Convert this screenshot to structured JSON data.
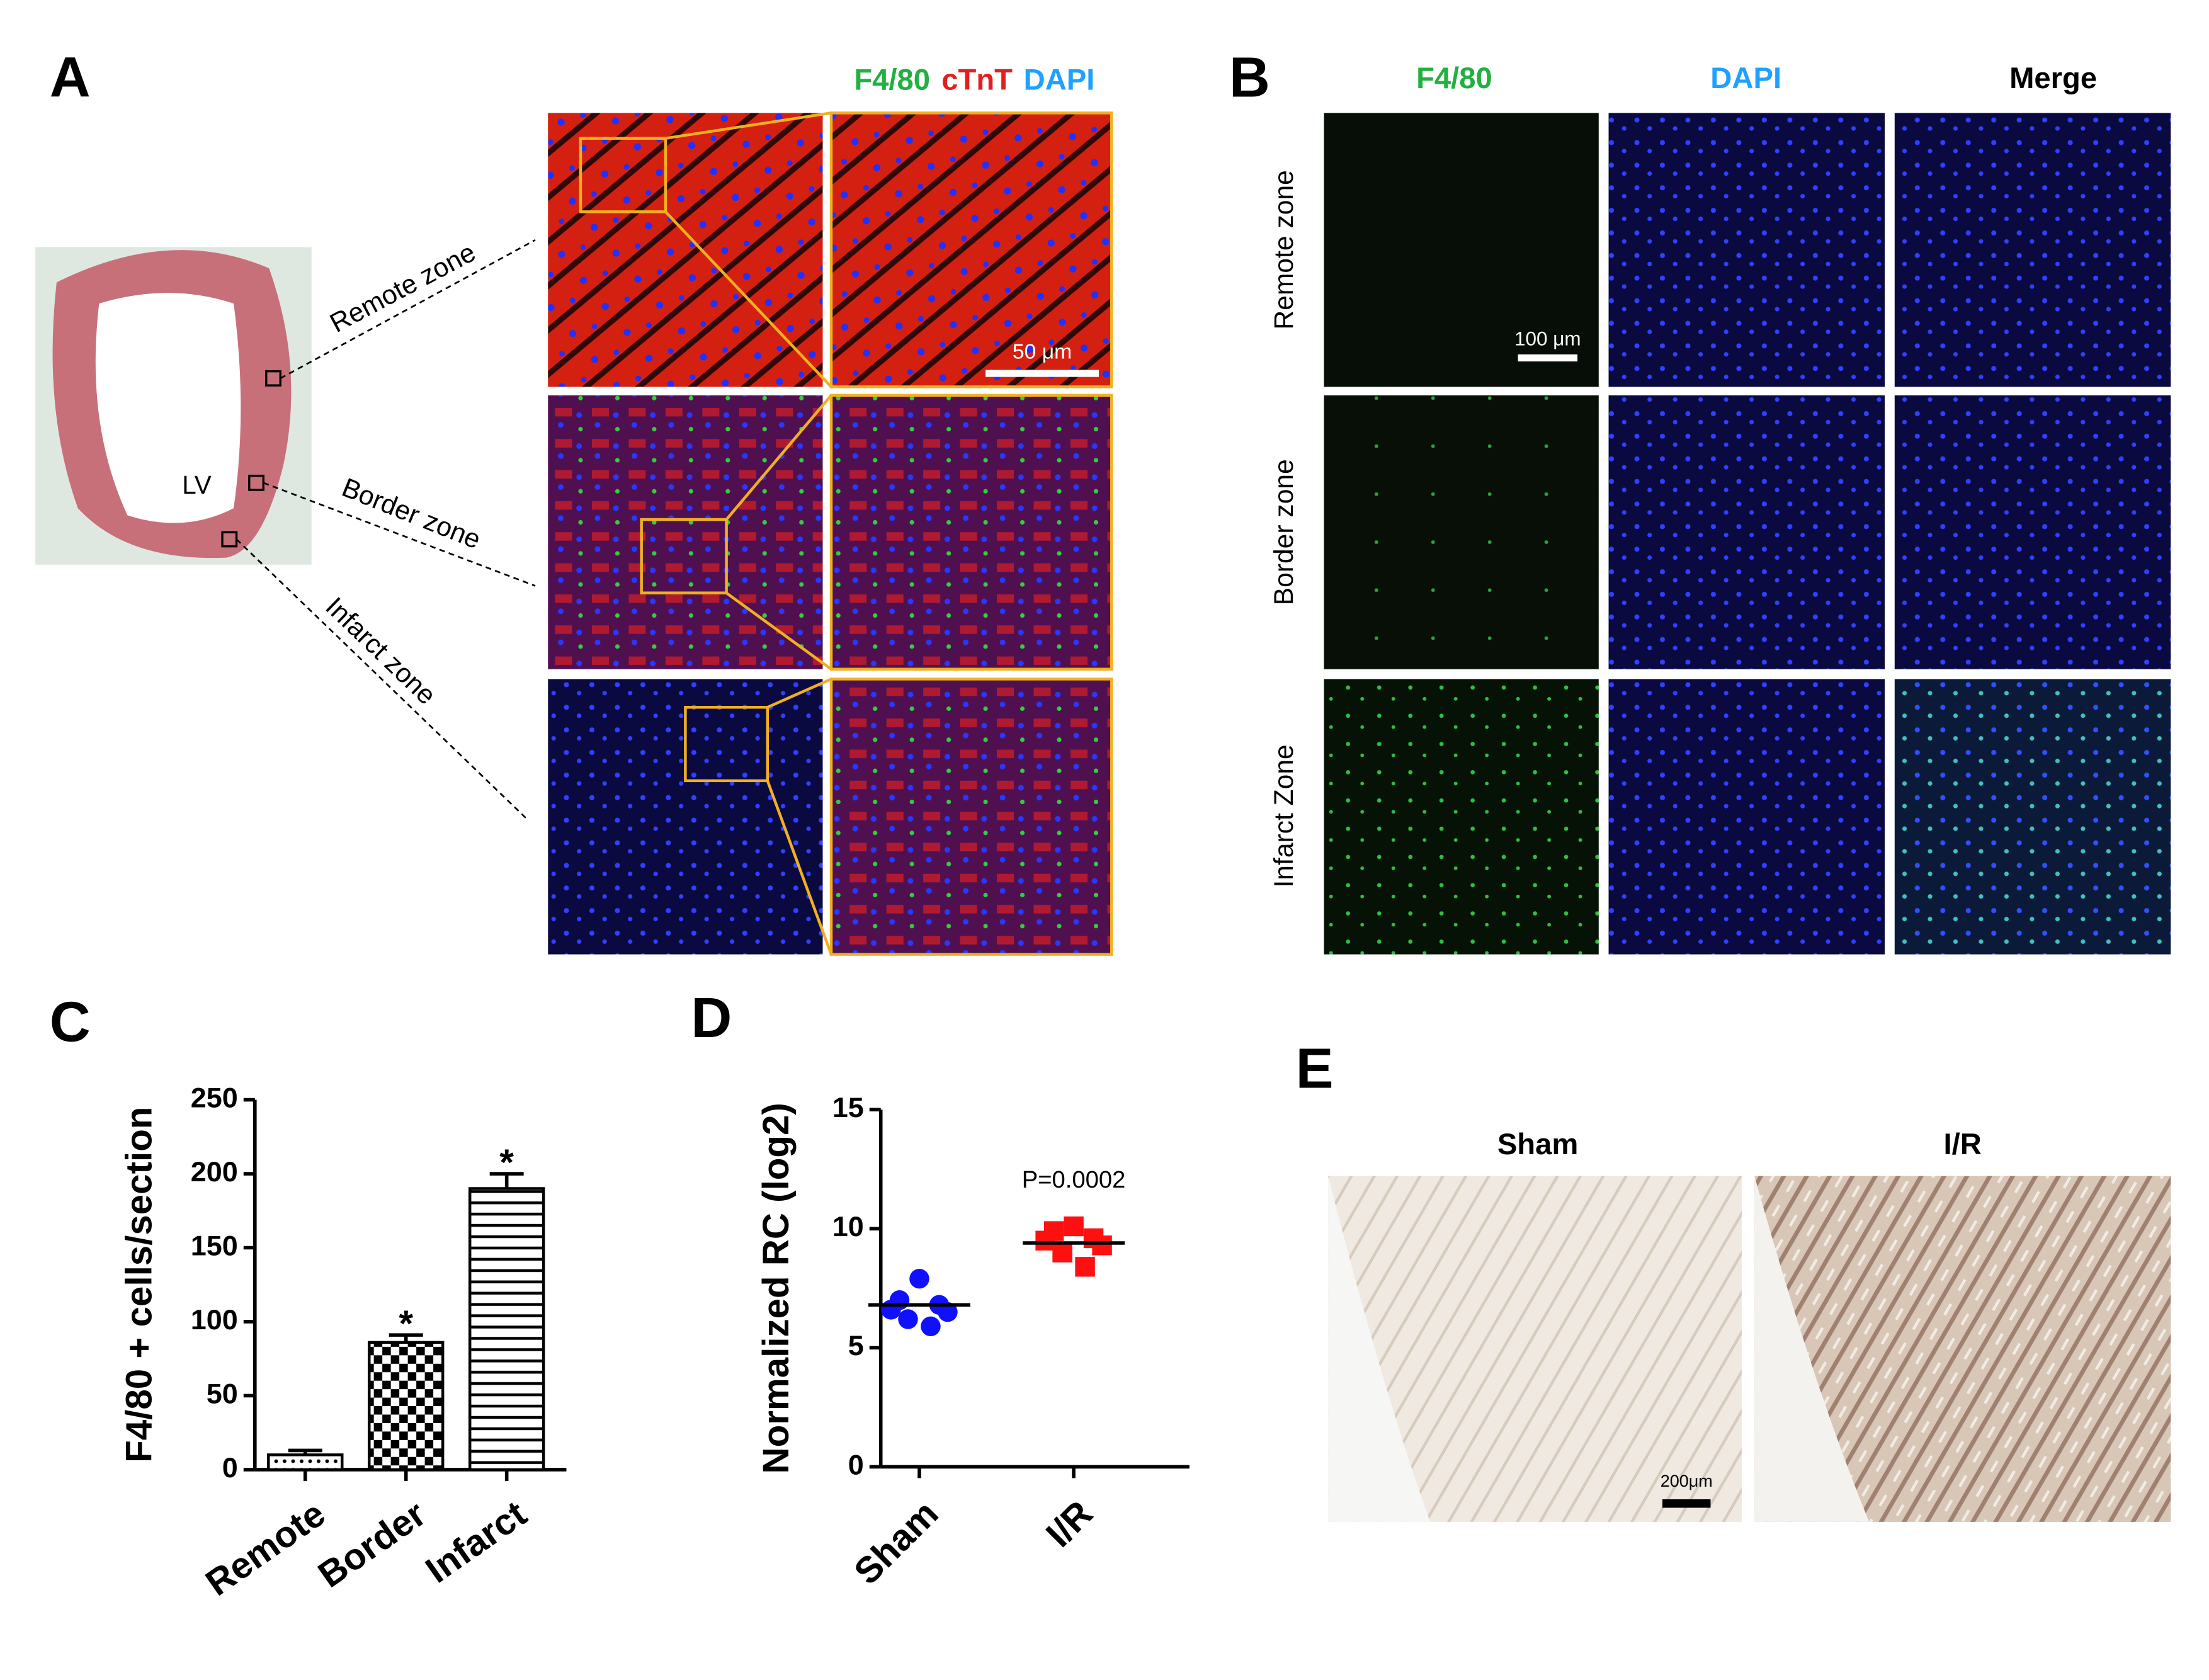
{
  "panels": {
    "a": {
      "label": "A",
      "stain_labels": [
        "F4/80",
        "cTnT",
        "DAPI"
      ],
      "zones": [
        "Remote zone",
        "Border zone",
        "Infarct zone"
      ],
      "chamber": "LV",
      "scale_bar": "50 μm"
    },
    "b": {
      "label": "B",
      "columns": [
        "F4/80",
        "DAPI",
        "Merge"
      ],
      "rows": [
        "Remote zone",
        "Border zone",
        "Infarct Zone"
      ],
      "scale_bar": "100 μm"
    },
    "c": {
      "label": "C"
    },
    "d": {
      "label": "D"
    },
    "e": {
      "label": "E",
      "columns": [
        "Sham",
        "I/R"
      ],
      "scale_bar": "200μm"
    }
  },
  "chart_data": [
    {
      "type": "bar",
      "y_label": "F4/80 + cells/section",
      "categories": [
        "Remote",
        "Border",
        "Infarct"
      ],
      "values": [
        10,
        86,
        190
      ],
      "errors": [
        3,
        5,
        10
      ],
      "patterns": [
        "dots",
        "checker",
        "hstripes"
      ],
      "color": "#000000",
      "annotations": [
        {
          "text": "*",
          "category": "Border"
        },
        {
          "text": "*",
          "category": "Infarct"
        }
      ],
      "ylim": [
        0,
        250
      ],
      "yticks": [
        0,
        50,
        100,
        150,
        200,
        250
      ]
    },
    {
      "type": "strip",
      "y_label": "Normalized RC (log2)",
      "categories": [
        "Sham",
        "I/R"
      ],
      "series": [
        {
          "color": "#1010ff",
          "marker": "circle",
          "values": [
            7.9,
            7.0,
            6.8,
            6.6,
            6.5,
            6.2,
            5.9
          ],
          "mean": 6.8
        },
        {
          "color": "#ff1010",
          "marker": "square",
          "values": [
            10.1,
            9.9,
            9.6,
            9.5,
            9.3,
            9.0,
            8.4
          ],
          "mean": 9.4
        }
      ],
      "annotations": [
        {
          "text": "P=0.0002",
          "category": "I/R"
        }
      ],
      "ylim": [
        0,
        15
      ],
      "yticks": [
        0,
        5,
        10,
        15
      ]
    }
  ]
}
